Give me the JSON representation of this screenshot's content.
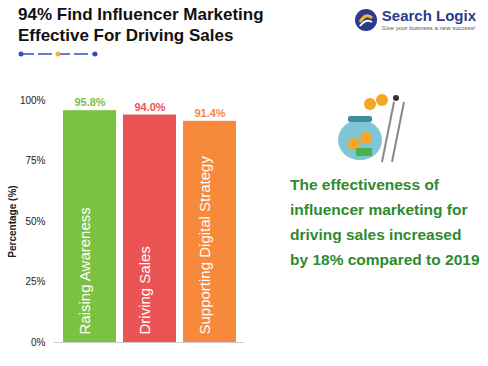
{
  "chart_data": {
    "type": "bar",
    "title": "94% Find Influencer Marketing Effective For Driving Sales",
    "logo": {
      "name": "Search Logix",
      "tagline": "Give your business a new success!"
    },
    "annotations": [
      "The effectiveness of influencer marketing for driving sales increased by 18% compared to 2019"
    ],
    "y_label": "Percentage (%)",
    "categories": [
      "Raising Awareness",
      "Driving Sales",
      "Supporting Digital Strategy"
    ],
    "values": [
      95.8,
      94.0,
      91.4
    ],
    "value_labels": [
      "95.8%",
      "94.0%",
      "91.4%"
    ],
    "colors": [
      "#7cc242",
      "#ea5455",
      "#f7893b"
    ],
    "ylim": [
      0,
      100
    ],
    "yticks": [
      {
        "value": 0,
        "label": "0%"
      },
      {
        "value": 25,
        "label": "25%"
      },
      {
        "value": 50,
        "label": "50%"
      },
      {
        "value": 75,
        "label": "75%"
      },
      {
        "value": 100,
        "label": "100%"
      }
    ],
    "grid": false,
    "data_labels": true,
    "tick_labels": "y"
  }
}
